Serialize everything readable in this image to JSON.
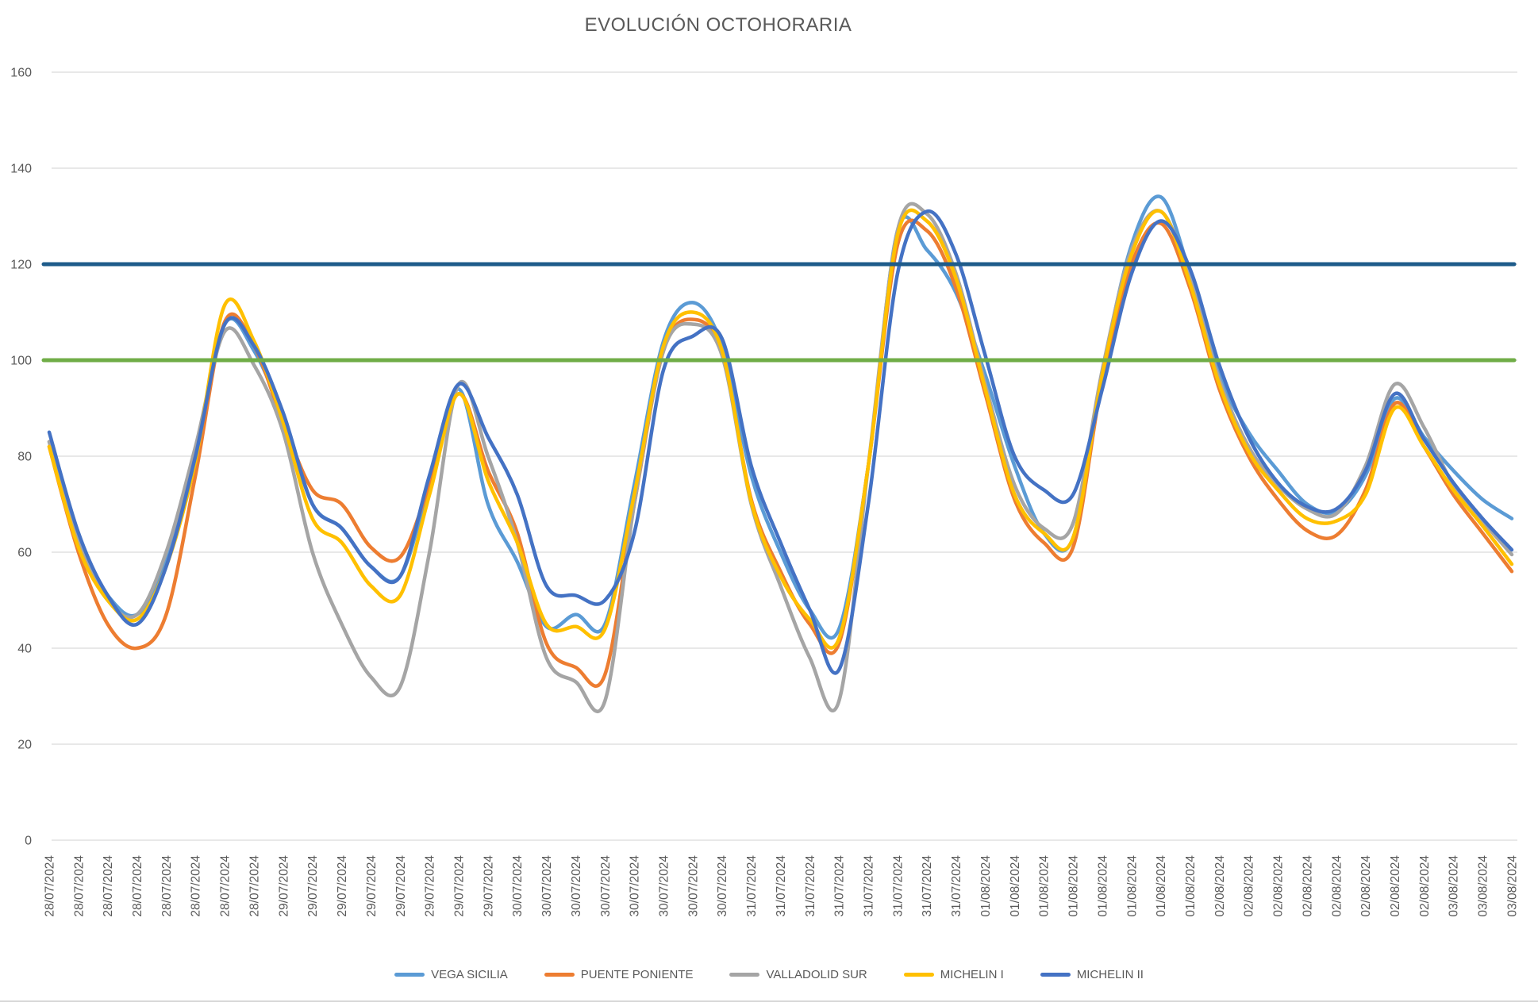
{
  "title": "EVOLUCIÓN OCTOHORARIA",
  "colors": {
    "axis_text": "#595959",
    "gridline": "#d9d9d9",
    "background": "#ffffff"
  },
  "chart_data": {
    "type": "line",
    "title": "EVOLUCIÓN OCTOHORARIA",
    "xlabel": "",
    "ylabel": "",
    "ylim": [
      0,
      160
    ],
    "yticks": [
      0,
      20,
      40,
      60,
      80,
      100,
      120,
      140,
      160
    ],
    "grid": true,
    "legend_position": "bottom",
    "x_labels": [
      "28/07/2024",
      "28/07/2024",
      "28/07/2024",
      "28/07/2024",
      "28/07/2024",
      "28/07/2024",
      "28/07/2024",
      "28/07/2024",
      "29/07/2024",
      "29/07/2024",
      "29/07/2024",
      "29/07/2024",
      "29/07/2024",
      "29/07/2024",
      "29/07/2024",
      "29/07/2024",
      "30/07/2024",
      "30/07/2024",
      "30/07/2024",
      "30/07/2024",
      "30/07/2024",
      "30/07/2024",
      "30/07/2024",
      "30/07/2024",
      "31/07/2024",
      "31/07/2024",
      "31/07/2024",
      "31/07/2024",
      "31/07/2024",
      "31/07/2024",
      "31/07/2024",
      "31/07/2024",
      "01/08/2024",
      "01/08/2024",
      "01/08/2024",
      "01/08/2024",
      "01/08/2024",
      "01/08/2024",
      "01/08/2024",
      "01/08/2024",
      "02/08/2024",
      "02/08/2024",
      "02/08/2024",
      "02/08/2024",
      "02/08/2024",
      "02/08/2024",
      "02/08/2024",
      "02/08/2024",
      "03/08/2024",
      "03/08/2024",
      "03/08/2024"
    ],
    "series": [
      {
        "name": "VEGA SICILIA",
        "color": "#5B9BD5",
        "values": [
          83,
          62,
          51,
          47,
          58,
          80,
          107.5,
          102,
          88,
          70,
          65,
          57,
          55,
          74,
          94,
          70,
          58,
          44.5,
          47,
          45,
          74,
          104,
          112,
          103,
          76,
          60,
          48,
          44,
          78,
          127,
          123,
          114,
          97,
          78,
          64,
          63,
          97,
          124,
          134,
          118,
          97,
          85,
          77,
          70,
          68.5,
          76,
          92,
          84,
          77,
          71,
          67
        ]
      },
      {
        "name": "PUENTE PONIENTE",
        "color": "#ED7D31",
        "values": [
          82,
          60,
          45,
          40,
          47,
          76,
          108,
          103,
          87,
          73,
          70,
          61,
          59,
          74,
          93,
          77,
          64,
          41,
          36,
          34.5,
          70,
          102,
          108.5,
          101.5,
          71,
          56,
          45,
          41,
          78,
          124,
          127,
          115,
          93,
          71,
          62,
          61,
          96,
          120,
          128.5,
          115,
          94,
          80,
          71,
          64.5,
          63.5,
          73,
          91,
          82,
          72,
          64,
          56
        ]
      },
      {
        "name": "VALLADOLID SUR",
        "color": "#A5A5A5",
        "values": [
          83,
          62,
          50,
          47,
          60,
          82,
          106,
          99,
          85,
          60,
          45,
          34,
          32,
          60,
          95,
          80,
          62,
          38,
          33,
          29,
          70,
          102,
          107.5,
          101,
          70,
          53,
          38,
          29,
          78,
          127,
          130.5,
          118,
          95,
          74,
          65,
          66,
          98,
          123,
          131,
          117,
          96,
          82,
          74,
          69,
          68,
          78,
          95,
          86,
          74,
          66.5,
          59.5
        ]
      },
      {
        "name": "MICHELIN I",
        "color": "#FFC000",
        "values": [
          82,
          61,
          50,
          46,
          57,
          79,
          111.5,
          104,
          87,
          67,
          62,
          53,
          51,
          72,
          93,
          75,
          62,
          45,
          44.5,
          44,
          72,
          103,
          110,
          102,
          70.5,
          55,
          46,
          42,
          78,
          126,
          129,
          117,
          94,
          72,
          64,
          63,
          97,
          122,
          131,
          116,
          95,
          81,
          73,
          67,
          66.5,
          72,
          90,
          82,
          73,
          65.5,
          57.5
        ]
      },
      {
        "name": "MICHELIN II",
        "color": "#4472C4",
        "values": [
          85,
          64,
          51,
          45,
          57,
          80,
          107.5,
          103,
          89,
          70,
          65,
          57,
          55,
          76,
          95,
          84,
          72,
          53,
          51,
          50,
          64,
          98,
          105,
          104.5,
          78,
          62,
          48,
          35.5,
          70,
          118,
          131,
          122,
          101,
          80,
          73,
          72,
          94,
          118,
          129,
          119,
          99,
          84,
          74.5,
          69.5,
          69,
          77,
          93,
          83.5,
          74.5,
          67,
          60.5
        ]
      }
    ],
    "reference_lines": [
      {
        "value": 120,
        "color": "#1F5C8B"
      },
      {
        "value": 100,
        "color": "#70AD47"
      }
    ]
  }
}
